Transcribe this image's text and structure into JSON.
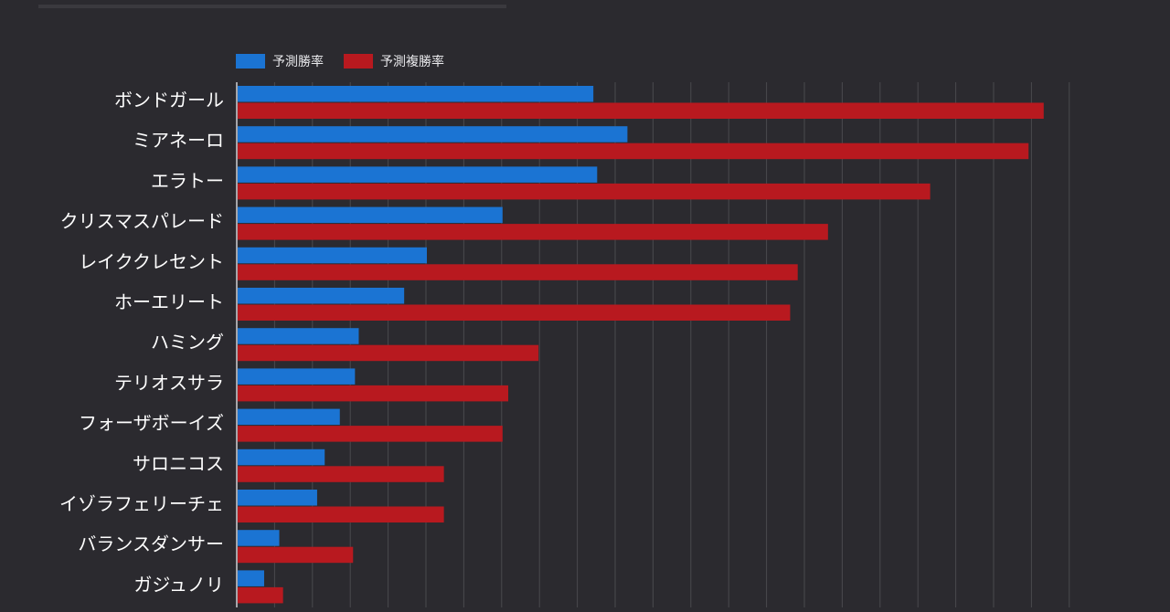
{
  "chart_data": {
    "type": "bar",
    "orientation": "horizontal",
    "categories": [
      "ボンドガール",
      "ミアネーロ",
      "エラトー",
      "クリスマスパレード",
      "レイククレセント",
      "ホーエリート",
      "ハミング",
      "テリオスサラ",
      "フォーザボーイズ",
      "サロニコス",
      "イゾラフェリーチェ",
      "バランスダンサー",
      "ガジュノリ"
    ],
    "series": [
      {
        "name": "予測勝率",
        "color": "#1b74d3",
        "values": [
          9.4,
          10.3,
          9.5,
          7.0,
          5.0,
          4.4,
          3.2,
          3.1,
          2.7,
          2.3,
          2.1,
          1.1,
          0.7
        ]
      },
      {
        "name": "予測複勝率",
        "color": "#b8191f",
        "values": [
          21.3,
          20.9,
          18.3,
          15.6,
          14.8,
          14.6,
          7.95,
          7.15,
          7.0,
          5.45,
          5.45,
          3.05,
          1.2
        ]
      }
    ],
    "xlim": [
      0,
      22
    ],
    "grid": true,
    "legend_position": "top-left",
    "title": "",
    "xlabel": "",
    "ylabel": ""
  }
}
